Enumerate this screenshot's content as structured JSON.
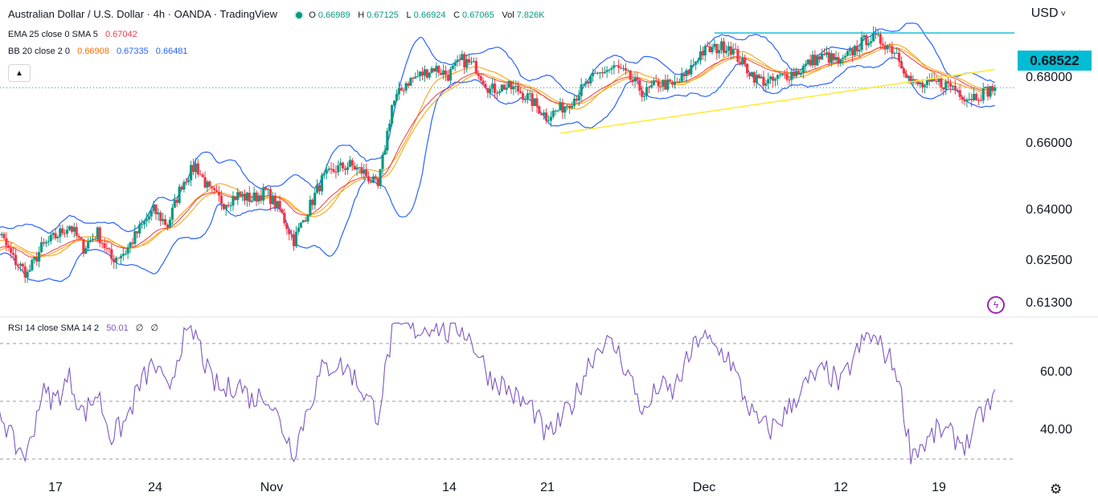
{
  "header": {
    "symbol_title": "Australian Dollar / U.S. Dollar · 4h · OANDA · TradingView",
    "ohlc": {
      "o_label": "O",
      "o": "0.66989",
      "h_label": "H",
      "h": "0.67125",
      "l_label": "L",
      "l": "0.66924",
      "c_label": "C",
      "c": "0.67065",
      "vol_label": "Vol",
      "vol": "7.826K"
    },
    "currency": "USD",
    "indicators": [
      {
        "label": "EMA 25 close 0 SMA 5",
        "values": [
          "0.67042"
        ],
        "colors": [
          "#f23645"
        ]
      },
      {
        "label": "BB 20 close 2 0",
        "values": [
          "0.66908",
          "0.67335",
          "0.66481"
        ],
        "colors": [
          "#ff6d00",
          "#2962ff",
          "#2962ff"
        ]
      }
    ],
    "rsi": {
      "label": "RSI 14 close SMA 14 2",
      "value": "50.01",
      "extra1": "∅",
      "extra2": "∅",
      "color": "#7e57c2"
    }
  },
  "price_axis": {
    "labels": [
      "0.68000",
      "0.66000",
      "0.64000",
      "0.62500",
      "0.61300"
    ],
    "highlight": "0.68522",
    "highlight_color": "#00bcd4"
  },
  "rsi_axis": {
    "labels": [
      "60.00",
      "40.00"
    ]
  },
  "time_axis": {
    "labels": [
      "17",
      "24",
      "Nov",
      "14",
      "21",
      "Dec",
      "12",
      "19"
    ]
  },
  "icons": {
    "collapse": "chevron-up-icon",
    "settings": "gear-icon",
    "alert": "lightning-icon"
  },
  "colors": {
    "up": "#089981",
    "down": "#f23645",
    "bb": "#2962ff",
    "ema": "#f23645",
    "sma": "#ff9800",
    "trend": "#ffeb3b",
    "resistance": "#00bcd4",
    "rsi": "#7e57c2"
  },
  "chart_data": {
    "type": "candlestick",
    "timeframe": "4h",
    "price_ylim": [
      0.61,
      0.694
    ],
    "rsi_ylim": [
      30,
      72
    ],
    "resistance_level": 0.68522,
    "current_price_line": 0.67065,
    "trendline": {
      "start": {
        "x": "Nov 22",
        "y": 0.6585
      },
      "end": {
        "x": "Dec 23",
        "y": 0.6755
      }
    },
    "x_ticks": [
      {
        "label": "17",
        "date": "Oct 17"
      },
      {
        "label": "24",
        "date": "Oct 24"
      },
      {
        "label": "Nov",
        "date": "Nov 1"
      },
      {
        "label": "14",
        "date": "Nov 14"
      },
      {
        "label": "21",
        "date": "Nov 21"
      },
      {
        "label": "Dec",
        "date": "Dec 1"
      },
      {
        "label": "12",
        "date": "Dec 12"
      },
      {
        "label": "19",
        "date": "Dec 19"
      }
    ],
    "close_anchors": [
      [
        "Oct 12",
        0.628
      ],
      [
        "Oct 13",
        0.632
      ],
      [
        "Oct 14",
        0.625
      ],
      [
        "Oct 15",
        0.621
      ],
      [
        "Oct 16",
        0.628
      ],
      [
        "Oct 17",
        0.631
      ],
      [
        "Oct 18",
        0.634
      ],
      [
        "Oct 19",
        0.628
      ],
      [
        "Oct 20",
        0.632
      ],
      [
        "Oct 21",
        0.625
      ],
      [
        "Oct 22",
        0.627
      ],
      [
        "Oct 23",
        0.633
      ],
      [
        "Oct 24",
        0.638
      ],
      [
        "Oct 25",
        0.634
      ],
      [
        "Oct 26",
        0.645
      ],
      [
        "Oct 27",
        0.65
      ],
      [
        "Oct 28",
        0.643
      ],
      [
        "Oct 29",
        0.64
      ],
      [
        "Oct 30",
        0.642
      ],
      [
        "Oct 31",
        0.641
      ],
      [
        "Nov 1",
        0.643
      ],
      [
        "Nov 2",
        0.638
      ],
      [
        "Nov 3",
        0.63
      ],
      [
        "Nov 4",
        0.638
      ],
      [
        "Nov 5",
        0.646
      ],
      [
        "Nov 6",
        0.649
      ],
      [
        "Nov 7",
        0.65
      ],
      [
        "Nov 8",
        0.648
      ],
      [
        "Nov 9",
        0.644
      ],
      [
        "Nov 10",
        0.666
      ],
      [
        "Nov 11",
        0.672
      ],
      [
        "Nov 12",
        0.674
      ],
      [
        "Nov 13",
        0.676
      ],
      [
        "Nov 14",
        0.674
      ],
      [
        "Nov 15",
        0.678
      ],
      [
        "Nov 16",
        0.676
      ],
      [
        "Nov 17",
        0.67
      ],
      [
        "Nov 18",
        0.671
      ],
      [
        "Nov 19",
        0.67
      ],
      [
        "Nov 20",
        0.667
      ],
      [
        "Nov 21",
        0.663
      ],
      [
        "Nov 22",
        0.665
      ],
      [
        "Nov 23",
        0.668
      ],
      [
        "Nov 24",
        0.672
      ],
      [
        "Nov 25",
        0.675
      ],
      [
        "Nov 26",
        0.676
      ],
      [
        "Nov 27",
        0.673
      ],
      [
        "Nov 28",
        0.669
      ],
      [
        "Nov 29",
        0.672
      ],
      [
        "Nov 30",
        0.671
      ],
      [
        "Dec 1",
        0.674
      ],
      [
        "Dec 2",
        0.68
      ],
      [
        "Dec 3",
        0.681
      ],
      [
        "Dec 4",
        0.682
      ],
      [
        "Dec 5",
        0.677
      ],
      [
        "Dec 6",
        0.673
      ],
      [
        "Dec 7",
        0.672
      ],
      [
        "Dec 8",
        0.674
      ],
      [
        "Dec 9",
        0.675
      ],
      [
        "Dec 10",
        0.678
      ],
      [
        "Dec 11",
        0.679
      ],
      [
        "Dec 12",
        0.677
      ],
      [
        "Dec 13",
        0.681
      ],
      [
        "Dec 14",
        0.684
      ],
      [
        "Dec 15",
        0.683
      ],
      [
        "Dec 16",
        0.68
      ],
      [
        "Dec 17",
        0.672
      ],
      [
        "Dec 18",
        0.671
      ],
      [
        "Dec 19",
        0.672
      ],
      [
        "Dec 20",
        0.671
      ],
      [
        "Dec 21",
        0.668
      ],
      [
        "Dec 22",
        0.669
      ],
      [
        "Dec 23",
        0.6707
      ]
    ],
    "rsi_anchors": [
      [
        "Oct 12",
        45
      ],
      [
        "Oct 13",
        48
      ],
      [
        "Oct 14",
        38
      ],
      [
        "Oct 15",
        35
      ],
      [
        "Oct 16",
        52
      ],
      [
        "Oct 17",
        50
      ],
      [
        "Oct 18",
        56
      ],
      [
        "Oct 19",
        46
      ],
      [
        "Oct 20",
        52
      ],
      [
        "Oct 21",
        40
      ],
      [
        "Oct 22",
        44
      ],
      [
        "Oct 23",
        54
      ],
      [
        "Oct 24",
        60
      ],
      [
        "Oct 25",
        52
      ],
      [
        "Oct 26",
        66
      ],
      [
        "Oct 27",
        68
      ],
      [
        "Oct 28",
        56
      ],
      [
        "Oct 29",
        52
      ],
      [
        "Oct 30",
        55
      ],
      [
        "Oct 31",
        50
      ],
      [
        "Nov 1",
        52
      ],
      [
        "Nov 2",
        44
      ],
      [
        "Nov 3",
        36
      ],
      [
        "Nov 4",
        48
      ],
      [
        "Nov 5",
        58
      ],
      [
        "Nov 6",
        60
      ],
      [
        "Nov 7",
        58
      ],
      [
        "Nov 8",
        52
      ],
      [
        "Nov 9",
        46
      ],
      [
        "Nov 10",
        68
      ],
      [
        "Nov 11",
        70
      ],
      [
        "Nov 12",
        69
      ],
      [
        "Nov 13",
        71
      ],
      [
        "Nov 14",
        68
      ],
      [
        "Nov 15",
        70
      ],
      [
        "Nov 16",
        64
      ],
      [
        "Nov 17",
        56
      ],
      [
        "Nov 18",
        54
      ],
      [
        "Nov 19",
        50
      ],
      [
        "Nov 20",
        48
      ],
      [
        "Nov 21",
        40
      ],
      [
        "Nov 22",
        44
      ],
      [
        "Nov 23",
        50
      ],
      [
        "Nov 24",
        60
      ],
      [
        "Nov 25",
        66
      ],
      [
        "Nov 26",
        64
      ],
      [
        "Nov 27",
        56
      ],
      [
        "Nov 28",
        46
      ],
      [
        "Nov 29",
        54
      ],
      [
        "Nov 30",
        52
      ],
      [
        "Dec 1",
        60
      ],
      [
        "Dec 2",
        68
      ],
      [
        "Dec 3",
        64
      ],
      [
        "Dec 4",
        62
      ],
      [
        "Dec 5",
        52
      ],
      [
        "Dec 6",
        44
      ],
      [
        "Dec 7",
        42
      ],
      [
        "Dec 8",
        46
      ],
      [
        "Dec 9",
        52
      ],
      [
        "Dec 10",
        56
      ],
      [
        "Dec 11",
        58
      ],
      [
        "Dec 12",
        54
      ],
      [
        "Dec 13",
        62
      ],
      [
        "Dec 14",
        68
      ],
      [
        "Dec 15",
        64
      ],
      [
        "Dec 16",
        58
      ],
      [
        "Dec 17",
        36
      ],
      [
        "Dec 18",
        38
      ],
      [
        "Dec 19",
        42
      ],
      [
        "Dec 20",
        40
      ],
      [
        "Dec 21",
        38
      ],
      [
        "Dec 22",
        46
      ],
      [
        "Dec 23",
        50
      ]
    ]
  }
}
